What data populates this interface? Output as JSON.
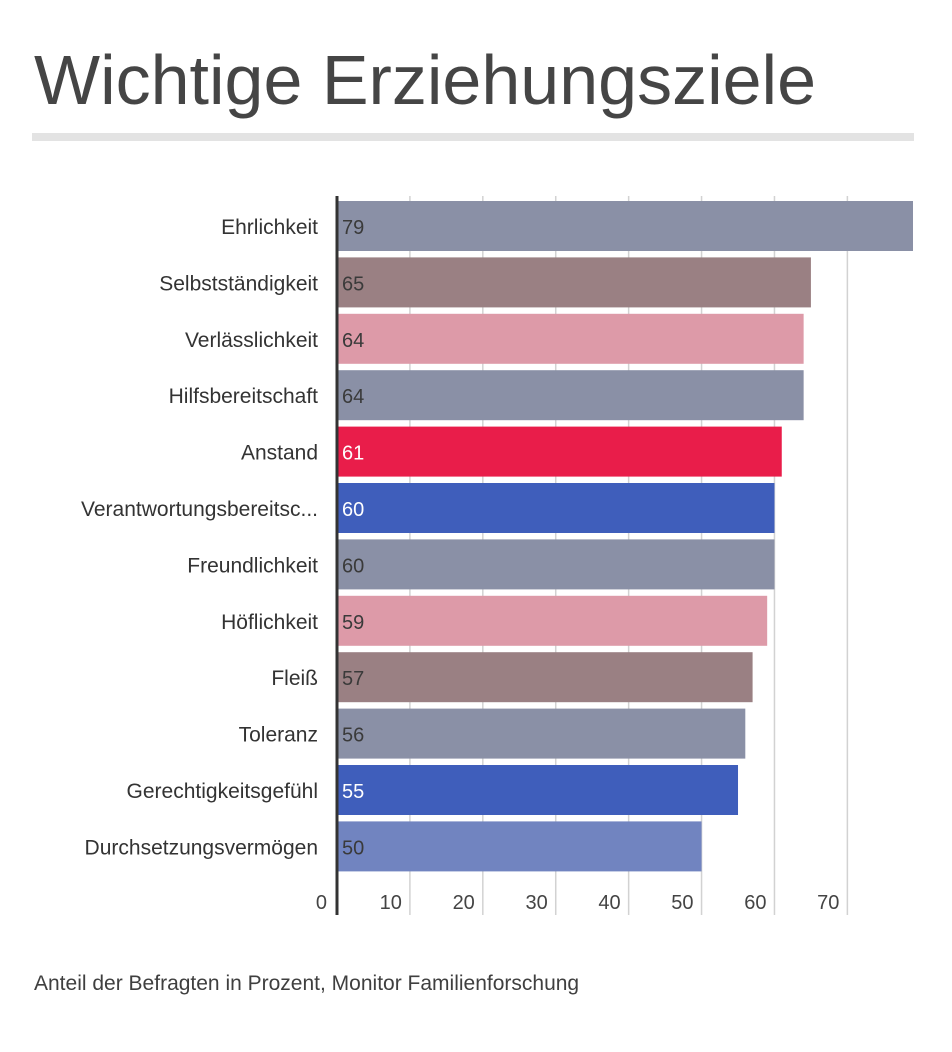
{
  "title": "Wichtige Erziehungsziele",
  "footnote": "Anteil der Befragten in Prozent, Monitor Familienforschung",
  "chart_data": {
    "type": "bar",
    "orientation": "horizontal",
    "categories": [
      "Ehrlichkeit",
      "Selbstständigkeit",
      "Verlässlichkeit",
      "Hilfsbereitschaft",
      "Anstand",
      "Verantwortungsbereitsc...",
      "Freundlichkeit",
      "Höflichkeit",
      "Fleiß",
      "Toleranz",
      "Gerechtigkeitsgefühl",
      "Durchsetzungsvermögen"
    ],
    "values": [
      79,
      65,
      64,
      64,
      61,
      60,
      60,
      59,
      57,
      56,
      55,
      50
    ],
    "value_labels": [
      "79",
      "65",
      "64",
      "64",
      "61",
      "60",
      "60",
      "59",
      "57",
      "56",
      "55",
      "50"
    ],
    "bar_colors": [
      "#8a90a6",
      "#9a8083",
      "#dd9aa8",
      "#8a90a6",
      "#e91d4a",
      "#3f5ebb",
      "#8a90a6",
      "#dd9aa8",
      "#9a8083",
      "#8a90a6",
      "#3f5ebb",
      "#7184c0"
    ],
    "value_label_colors": [
      "#3a3a3a",
      "#3a3a3a",
      "#3a3a3a",
      "#3a3a3a",
      "#ffffff",
      "#ffffff",
      "#3a3a3a",
      "#3a3a3a",
      "#3a3a3a",
      "#3a3a3a",
      "#ffffff",
      "#3a3a3a"
    ],
    "xticks": [
      0,
      10,
      20,
      30,
      40,
      50,
      60,
      70
    ],
    "xtick_labels": [
      "0",
      "10",
      "20",
      "30",
      "40",
      "50",
      "60",
      "70"
    ],
    "xlim": [
      0,
      79
    ],
    "grid": true,
    "legend": "none"
  }
}
